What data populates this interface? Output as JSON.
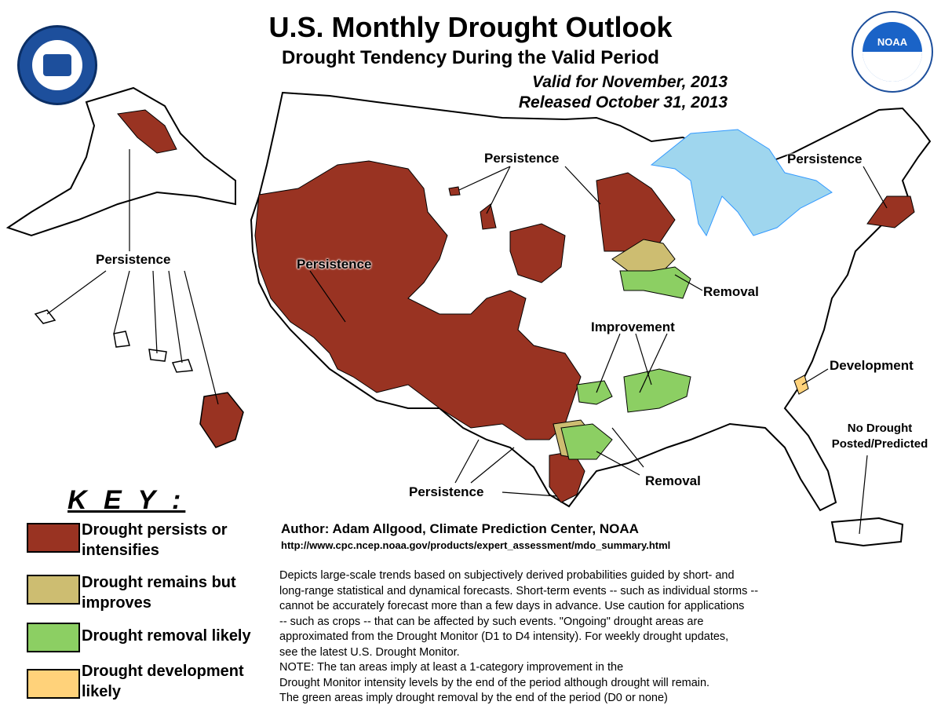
{
  "header": {
    "title": "U.S. Monthly Drought Outlook",
    "subtitle": "Drought Tendency During the Valid Period",
    "valid": "Valid for November, 2013",
    "released": "Released October 31, 2013"
  },
  "logos": {
    "left": "department-of-commerce-seal",
    "right": "noaa-logo",
    "right_text": "NOAA"
  },
  "map_labels": {
    "persistence_alaska": "Persistence",
    "persistence_west": "Persistence",
    "persistence_north": "Persistence",
    "persistence_northeast": "Persistence",
    "persistence_texas": "Persistence",
    "removal_midwest": "Removal",
    "removal_south": "Removal",
    "improvement": "Improvement",
    "development": "Development",
    "no_drought_line1": "No Drought",
    "no_drought_line2": "Posted/Predicted"
  },
  "key": {
    "title": "K E Y :",
    "items": [
      {
        "line1": "Drought persists or",
        "line2": "intensifies",
        "color": "#993322"
      },
      {
        "line1": "Drought remains but",
        "line2": "improves",
        "color": "#cdbd71"
      },
      {
        "line1": "Drought removal likely",
        "line2": "",
        "color": "#8ccf63"
      },
      {
        "line1": "Drought development",
        "line2": "likely",
        "color": "#ffd27a"
      }
    ]
  },
  "author": "Author: Adam Allgood, Climate Prediction Center, NOAA",
  "url": "http://www.cpc.ncep.noaa.gov/products/expert_assessment/mdo_summary.html",
  "description": [
    "Depicts large-scale trends based on subjectively derived probabilities guided by short- and",
    "long-range statistical and dynamical forecasts. Short-term events -- such as individual storms --",
    "cannot be accurately forecast more than a few days in advance. Use caution for applications",
    "-- such as crops -- that can be affected by such events. \"Ongoing\" drought areas are",
    "approximated from the Drought Monitor (D1 to D4 intensity). For weekly drought updates,",
    "see the latest U.S. Drought Monitor.",
    "NOTE: The tan areas imply at least a 1-category improvement in the",
    "Drought Monitor intensity levels by the end of the period although drought will remain.",
    "The green areas imply drought removal by the end of the period (D0 or none)"
  ],
  "colors": {
    "persist": "#993322",
    "improve": "#cdbd71",
    "removal": "#8ccf63",
    "development": "#ffd27a",
    "water": "#9fd6ee",
    "rivers": "#3399ff",
    "outline": "#000000"
  }
}
